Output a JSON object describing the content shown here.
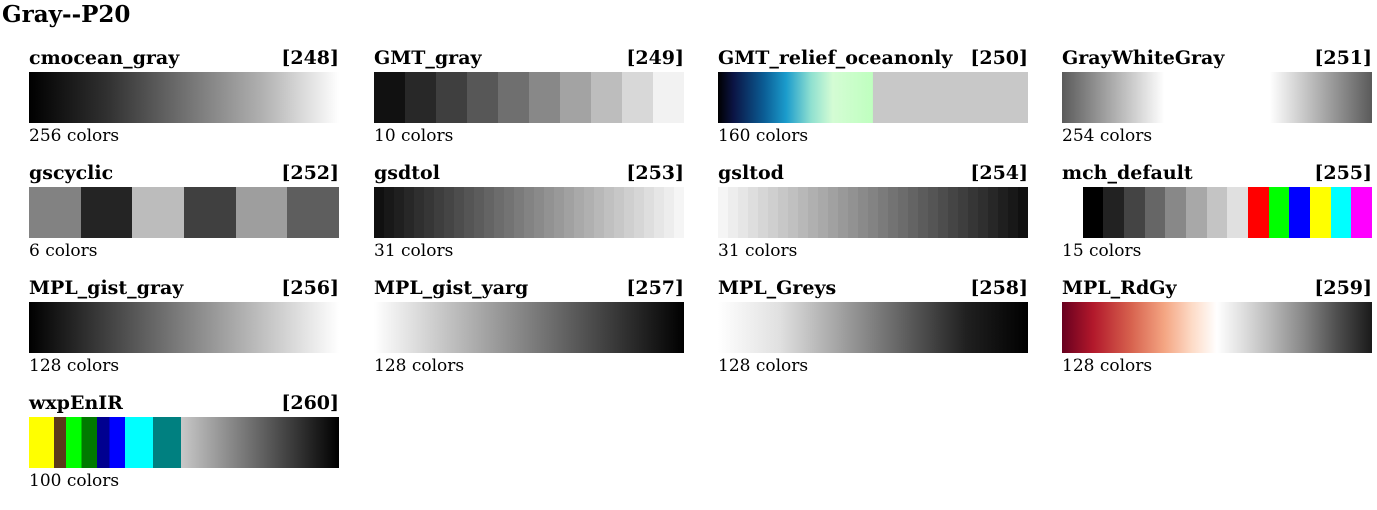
{
  "title": "Gray--P20",
  "colormaps": [
    {
      "name": "cmocean_gray",
      "index": "[248]",
      "count_label": "256 colors",
      "type": "gradient",
      "stops": [
        "#000000",
        "#303030",
        "#707070",
        "#b0b0b0",
        "#ffffff"
      ]
    },
    {
      "name": "GMT_gray",
      "index": "[249]",
      "count_label": "10 colors",
      "type": "discrete",
      "colors": [
        "#111111",
        "#282828",
        "#3f3f3f",
        "#575757",
        "#6f6f6f",
        "#888888",
        "#a3a3a3",
        "#bdbdbd",
        "#d8d8d8",
        "#f2f2f2"
      ]
    },
    {
      "name": "GMT_relief_oceanonly",
      "index": "[250]",
      "count_label": "160 colors",
      "type": "gradient",
      "stops": [
        "#000000 0%",
        "#0b1444 5%",
        "#0b5e96 15%",
        "#1b9ccc 22%",
        "#8fe0d0 30%",
        "#d4fcd4 37%",
        "#bfffbf 49.9%",
        "#c8c8c8 50%",
        "#c8c8c8 100%"
      ]
    },
    {
      "name": "GrayWhiteGray",
      "index": "[251]",
      "count_label": "254 colors",
      "type": "gradient",
      "stops": [
        "#5a5a5a 0%",
        "#ffffff 33%",
        "#ffffff 67%",
        "#5a5a5a 100%"
      ]
    },
    {
      "name": "gscyclic",
      "index": "[252]",
      "count_label": "6 colors",
      "type": "discrete",
      "colors": [
        "#828282",
        "#242424",
        "#bcbcbc",
        "#404040",
        "#9e9e9e",
        "#5e5e5e"
      ]
    },
    {
      "name": "gsdtol",
      "index": "[253]",
      "count_label": "31 colors",
      "type": "ramp",
      "from": "#101010",
      "to": "#f5f5f5",
      "n": 31
    },
    {
      "name": "gsltod",
      "index": "[254]",
      "count_label": "31 colors",
      "type": "ramp",
      "from": "#f5f5f5",
      "to": "#101010",
      "n": 31
    },
    {
      "name": "mch_default",
      "index": "[255]",
      "count_label": "15 colors",
      "type": "discrete",
      "colors": [
        "#ffffff",
        "#000000",
        "#222222",
        "#444444",
        "#666666",
        "#888888",
        "#a8a8a8",
        "#c4c4c4",
        "#e0e0e0",
        "#ff0000",
        "#00ff00",
        "#0000ff",
        "#ffff00",
        "#00ffff",
        "#ff00ff"
      ]
    },
    {
      "name": "MPL_gist_gray",
      "index": "[256]",
      "count_label": "128 colors",
      "type": "gradient",
      "stops": [
        "#000000",
        "#ffffff"
      ]
    },
    {
      "name": "MPL_gist_yarg",
      "index": "[257]",
      "count_label": "128 colors",
      "type": "gradient",
      "stops": [
        "#ffffff",
        "#000000"
      ]
    },
    {
      "name": "MPL_Greys",
      "index": "[258]",
      "count_label": "128 colors",
      "type": "gradient",
      "stops": [
        "#ffffff",
        "#e0e0e0",
        "#a0a0a0",
        "#606060",
        "#202020",
        "#000000"
      ]
    },
    {
      "name": "MPL_RdGy",
      "index": "[259]",
      "count_label": "128 colors",
      "type": "gradient",
      "stops": [
        "#67001f 0%",
        "#b2182b 10%",
        "#d6604d 22%",
        "#f4a582 33%",
        "#fddbc7 42%",
        "#ffffff 50%",
        "#e0e0e0 58%",
        "#bababa 67%",
        "#878787 78%",
        "#4d4d4d 89%",
        "#1a1a1a 100%"
      ]
    },
    {
      "name": "wxpEnIR",
      "index": "[260]",
      "count_label": "100 colors",
      "type": "gradient",
      "stops": [
        "#ffff00 0%",
        "#ffff00 8%",
        "#5a3a1a 8%",
        "#5a3a1a 12%",
        "#00ff00 12%",
        "#00ff00 17%",
        "#007a00 17%",
        "#007a00 22%",
        "#000090 22%",
        "#000090 26%",
        "#0000ff 26%",
        "#0000ff 31%",
        "#00ffff 31%",
        "#00ffff 40%",
        "#008080 40%",
        "#008080 49%",
        "#c8c8c8 49%",
        "#000000 100%"
      ]
    }
  ]
}
